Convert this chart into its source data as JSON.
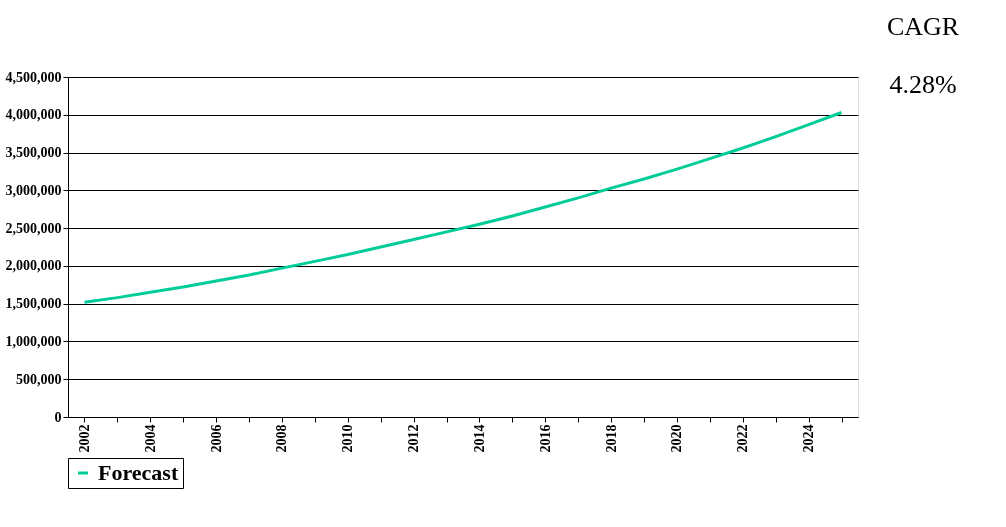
{
  "chart_data": {
    "type": "line",
    "categories": [
      "2002",
      null,
      "2004",
      null,
      "2006",
      null,
      "2008",
      null,
      "2010",
      null,
      "2012",
      null,
      "2014",
      null,
      "2016",
      null,
      "2018",
      null,
      "2020",
      null,
      "2022",
      null,
      "2024",
      null
    ],
    "series": [
      {
        "name": "Forecast",
        "color": "#00cc99",
        "values": [
          1520000,
          1580000,
          1650000,
          1720000,
          1800000,
          1880000,
          1970000,
          2060000,
          2150000,
          2250000,
          2350000,
          2450000,
          2550000,
          2660000,
          2780000,
          2900000,
          3030000,
          3150000,
          3280000,
          3420000,
          3560000,
          3710000,
          3870000,
          4030000
        ]
      }
    ],
    "ylim": [
      0,
      4500000
    ],
    "yticks": [
      {
        "value": 0,
        "label": "0"
      },
      {
        "value": 500000,
        "label": "500,000"
      },
      {
        "value": 1000000,
        "label": "1,000,000"
      },
      {
        "value": 1500000,
        "label": "1,500,000"
      },
      {
        "value": 2000000,
        "label": "2,000,000"
      },
      {
        "value": 2500000,
        "label": "2,500,000"
      },
      {
        "value": 3000000,
        "label": "3,000,000"
      },
      {
        "value": 3500000,
        "label": "3,500,000"
      },
      {
        "value": 4000000,
        "label": "4,000,000"
      },
      {
        "value": 4500000,
        "label": "4,500,000"
      }
    ],
    "grid": "y",
    "legend": "bottom",
    "marker": "none",
    "line_style": "solid",
    "annotations": [
      "CAGR",
      "4.28%"
    ]
  }
}
